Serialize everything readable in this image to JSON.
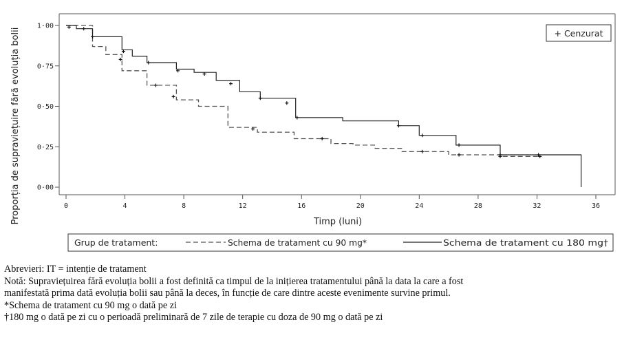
{
  "chart_data": {
    "type": "line",
    "step": true,
    "ylabel": "Proporția de supraviețuire fără evoluția bolii",
    "xlabel": "Timp (luni)",
    "x_ticks": [
      "0",
      "4",
      "8",
      "12",
      "16",
      "20",
      "24",
      "28",
      "32",
      "36"
    ],
    "y_ticks": [
      "0·00",
      "0·25",
      "0·50",
      "0·75",
      "1·00"
    ],
    "xlim": [
      0,
      36
    ],
    "ylim": [
      0,
      1
    ],
    "grid": false,
    "censor_legend": "+ Cenzurat",
    "legend_placement": "top-right",
    "group_legend": {
      "title": "Grup de tratament:",
      "placement": "bottom"
    },
    "series": [
      {
        "name": "Schema de tratament cu 90 mg*",
        "line_style": "dashed",
        "color": "#555555",
        "x": [
          0,
          1.8,
          1.8,
          2.7,
          2.7,
          3.8,
          3.8,
          5.5,
          5.5,
          7.5,
          7.5,
          9,
          9,
          11,
          11,
          13,
          13,
          15.5,
          15.5,
          18,
          18,
          19.5,
          19.5,
          21,
          21,
          22.8,
          22.8,
          26,
          26,
          29.5,
          29.5,
          32.2
        ],
        "y": [
          1,
          1,
          0.87,
          0.87,
          0.82,
          0.82,
          0.72,
          0.72,
          0.63,
          0.63,
          0.54,
          0.54,
          0.5,
          0.5,
          0.37,
          0.37,
          0.34,
          0.34,
          0.3,
          0.3,
          0.27,
          0.27,
          0.26,
          0.26,
          0.24,
          0.24,
          0.22,
          0.22,
          0.2,
          0.2,
          0.19,
          0.19
        ],
        "censored_x": [
          1.2,
          3.7,
          6.1,
          7.3,
          12.7,
          17.4,
          24.2,
          26.7,
          29.5,
          32.2
        ],
        "censored_y": [
          0.98,
          0.79,
          0.63,
          0.56,
          0.36,
          0.3,
          0.22,
          0.2,
          0.19,
          0.19
        ]
      },
      {
        "name": "Schema de tratament cu 180 mg†",
        "line_style": "solid",
        "color": "#222222",
        "x": [
          0,
          0.7,
          0.7,
          1.8,
          1.8,
          3.8,
          3.8,
          4.5,
          4.5,
          5.5,
          5.5,
          7.5,
          7.5,
          8.7,
          8.7,
          10.2,
          10.2,
          11.8,
          11.8,
          13.2,
          13.2,
          15.6,
          15.6,
          18.8,
          18.8,
          22.6,
          22.6,
          24,
          24,
          26.5,
          26.5,
          29.5,
          29.5,
          35,
          35
        ],
        "y": [
          1,
          1,
          0.98,
          0.98,
          0.93,
          0.93,
          0.85,
          0.85,
          0.81,
          0.81,
          0.77,
          0.77,
          0.73,
          0.73,
          0.71,
          0.71,
          0.66,
          0.66,
          0.59,
          0.59,
          0.55,
          0.55,
          0.43,
          0.43,
          0.41,
          0.41,
          0.38,
          0.38,
          0.32,
          0.32,
          0.26,
          0.26,
          0.2,
          0.2,
          0
        ],
        "censored_x": [
          0.2,
          1.8,
          3.9,
          5.6,
          7.6,
          9.4,
          11.2,
          13.2,
          15,
          15.7,
          22.6,
          24.2,
          26.7,
          29.5,
          32.1
        ],
        "censored_y": [
          0.99,
          0.93,
          0.84,
          0.77,
          0.72,
          0.7,
          0.64,
          0.55,
          0.52,
          0.43,
          0.38,
          0.32,
          0.26,
          0.2,
          0.2
        ]
      }
    ]
  },
  "notes": [
    "Abrevieri: IT = intenție de tratament",
    "Notă: Supraviețuirea fără evoluția bolii a fost definită ca timpul de la inițierea tratamentului până la data la care a fost",
    "manifestată prima dată evoluția bolii sau până la deces, în funcție de care dintre aceste evenimente survine primul.",
    "*Schema de tratament cu 90 mg o dată pe zi",
    "†180 mg o dată pe zi cu o perioadă preliminară de 7 zile de terapie cu doza de 90 mg o dată pe zi"
  ]
}
